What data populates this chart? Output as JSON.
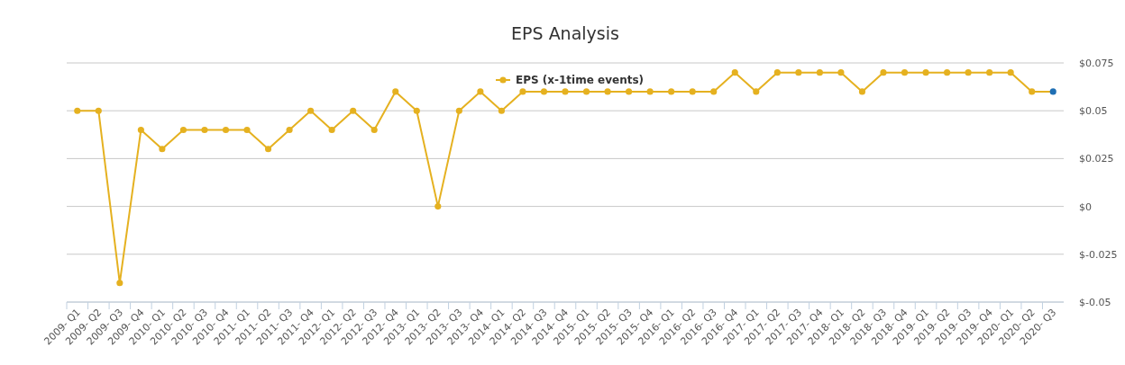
{
  "chart_data": {
    "type": "line",
    "title": "EPS Analysis",
    "categories": [
      "2009- Q1",
      "2009- Q2",
      "2009- Q3",
      "2009- Q4",
      "2010- Q1",
      "2010- Q2",
      "2010- Q3",
      "2010- Q4",
      "2011- Q1",
      "2011- Q2",
      "2011- Q3",
      "2011- Q4",
      "2012- Q1",
      "2012- Q2",
      "2012- Q3",
      "2012- Q4",
      "2013- Q1",
      "2013- Q2",
      "2013- Q3",
      "2013- Q4",
      "2014- Q1",
      "2014- Q2",
      "2014- Q3",
      "2014- Q4",
      "2015- Q1",
      "2015- Q2",
      "2015- Q3",
      "2015- Q4",
      "2016- Q1",
      "2016- Q2",
      "2016- Q3",
      "2016- Q4",
      "2017- Q1",
      "2017- Q2",
      "2017- Q3",
      "2017- Q4",
      "2018- Q1",
      "2018- Q2",
      "2018- Q3",
      "2018- Q4",
      "2019- Q1",
      "2019- Q2",
      "2019- Q3",
      "2019- Q4",
      "2020- Q1",
      "2020- Q2",
      "2020- Q3"
    ],
    "series": [
      {
        "name": "EPS (x-1time events)",
        "color": "#e5b120",
        "colors": [
          "#e5b120",
          "#e5b120",
          "#e5b120",
          "#e5b120",
          "#e5b120",
          "#e5b120",
          "#e5b120",
          "#e5b120",
          "#e5b120",
          "#e5b120",
          "#e5b120",
          "#e5b120",
          "#e5b120",
          "#e5b120",
          "#e5b120",
          "#e5b120",
          "#e5b120",
          "#e5b120",
          "#e5b120",
          "#e5b120",
          "#e5b120",
          "#e5b120",
          "#e5b120",
          "#e5b120",
          "#e5b120",
          "#e5b120",
          "#e5b120",
          "#e5b120",
          "#e5b120",
          "#e5b120",
          "#e5b120",
          "#e5b120",
          "#e5b120",
          "#e5b120",
          "#e5b120",
          "#e5b120",
          "#e5b120",
          "#e5b120",
          "#e5b120",
          "#e5b120",
          "#e5b120",
          "#e5b120",
          "#e5b120",
          "#e5b120",
          "#e5b120",
          "#e5b120",
          "#1f6fb4"
        ],
        "values": [
          0.05,
          0.05,
          -0.04,
          0.04,
          0.03,
          0.04,
          0.04,
          0.04,
          0.04,
          0.03,
          0.04,
          0.05,
          0.04,
          0.05,
          0.04,
          0.06,
          0.05,
          0,
          0.05,
          0.06,
          0.05,
          0.06,
          0.06,
          0.06,
          0.06,
          0.06,
          0.06,
          0.06,
          0.06,
          0.06,
          0.06,
          0.07,
          0.06,
          0.07,
          0.07,
          0.07,
          0.07,
          0.06,
          0.07,
          0.07,
          0.07,
          0.07,
          0.07,
          0.07,
          0.07,
          0.06,
          0.06
        ]
      }
    ],
    "ylim": [
      -0.05,
      0.075
    ],
    "yticks": [
      {
        "value": 0.075,
        "label": "$0.075"
      },
      {
        "value": 0.05,
        "label": "$0.05"
      },
      {
        "value": 0.025,
        "label": "$0.025"
      },
      {
        "value": 0,
        "label": "$0"
      },
      {
        "value": -0.025,
        "label": "$-0.025"
      },
      {
        "value": -0.05,
        "label": "$-0.05"
      }
    ],
    "grid": "y",
    "legend": "top",
    "marker": "circle",
    "line_style": "solid"
  }
}
